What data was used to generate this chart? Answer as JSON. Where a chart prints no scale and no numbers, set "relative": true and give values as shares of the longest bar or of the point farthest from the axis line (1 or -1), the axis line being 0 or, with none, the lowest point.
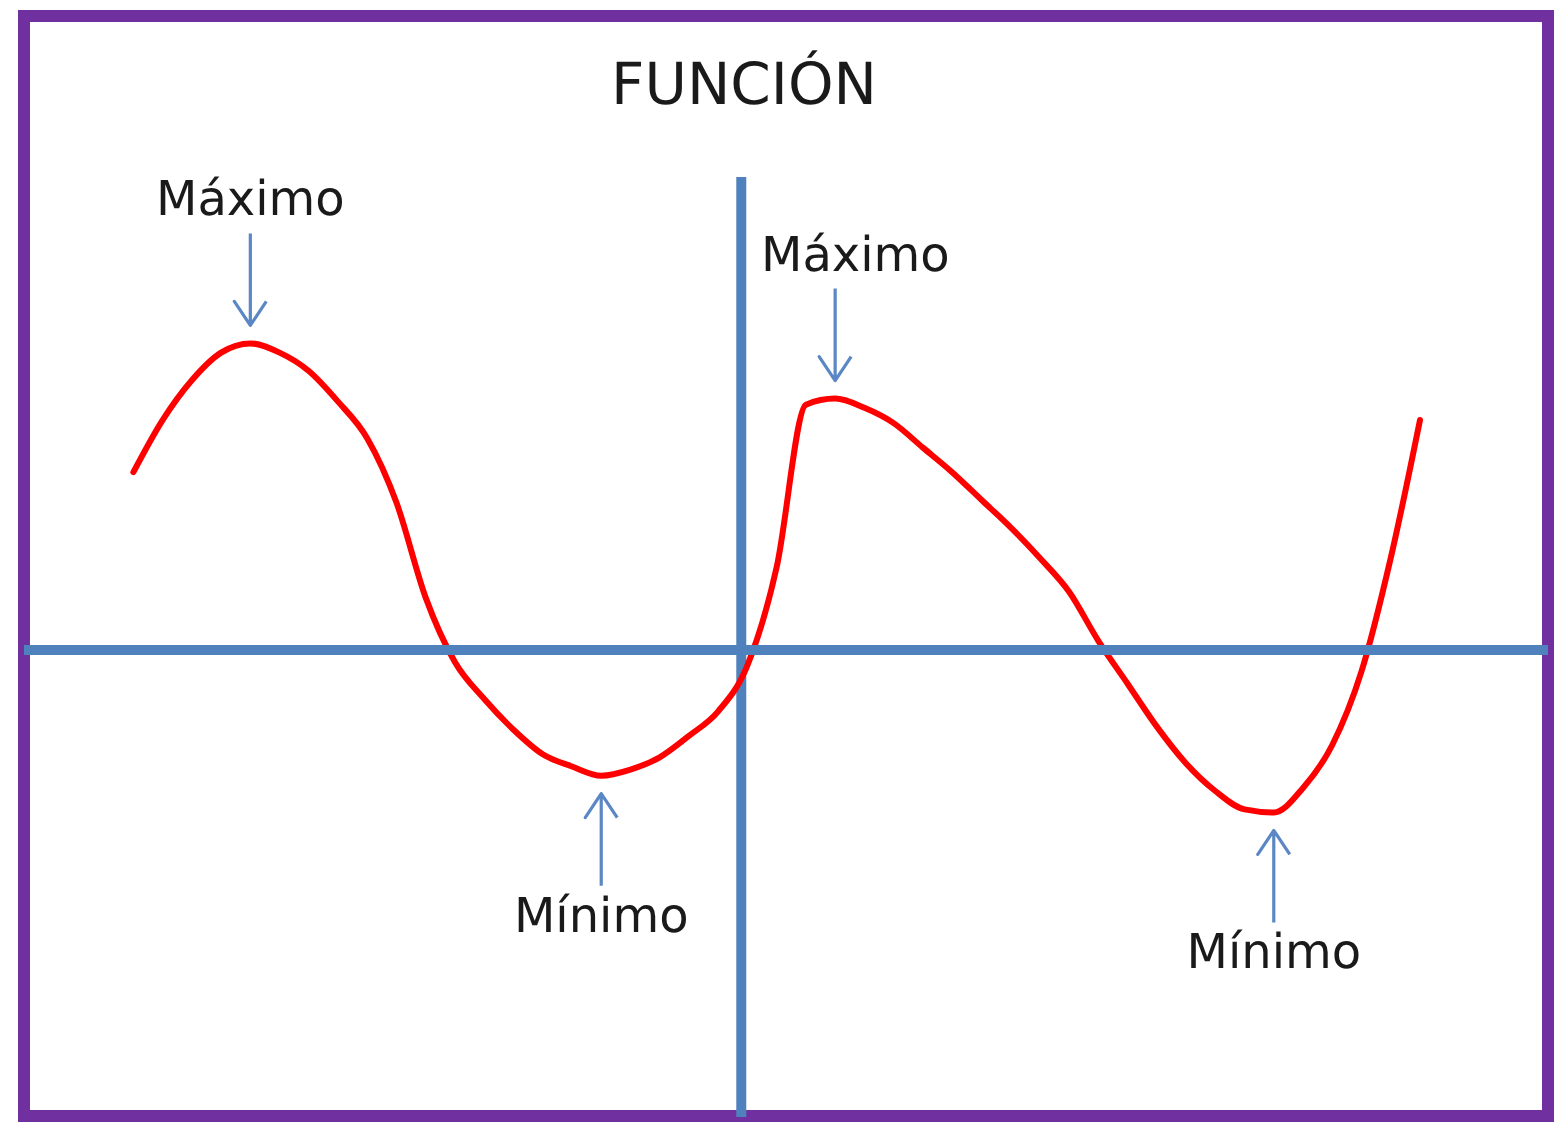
{
  "chart_data": {
    "type": "line",
    "title": "FUNCIÓN",
    "relative": true,
    "categories": [
      null,
      null,
      null,
      null,
      null,
      null,
      null,
      null,
      null,
      null,
      null,
      null,
      null,
      null,
      null,
      null,
      null,
      null,
      null,
      null,
      null,
      null,
      null,
      null,
      null,
      null,
      null,
      null,
      null,
      null,
      null,
      null,
      null,
      null,
      null,
      null,
      null,
      null,
      null,
      null,
      null,
      null,
      null,
      null,
      null
    ],
    "series": [
      {
        "color": "#ff0000",
        "values": [
          0.58,
          0.75,
          0.88,
          0.97,
          1,
          0.97,
          0.91,
          0.81,
          0.69,
          0.48,
          0.17,
          -0.04,
          -0.16,
          -0.26,
          -0.34,
          -0.38,
          -0.41,
          -0.39,
          -0.35,
          -0.28,
          -0.2,
          -0.05,
          0.27,
          0.8,
          0.82,
          0.79,
          0.74,
          0.66,
          0.58,
          0.49,
          0.4,
          0.3,
          0.19,
          0.03,
          -0.11,
          -0.25,
          -0.37,
          -0.46,
          -0.52,
          -0.53,
          -0.45,
          -0.31,
          -0.07,
          0.3,
          0.75
        ]
      }
    ],
    "ref_lines": [
      {
        "axis": "y",
        "value": 0,
        "color": "#4f81bd"
      }
    ],
    "annotations": [
      {
        "text": "Máximo",
        "y": 1
      },
      {
        "text": "Mínimo",
        "y": -0.41
      },
      {
        "text": "Máximo",
        "y": 0.82
      },
      {
        "text": "Mínimo",
        "y": -0.53
      }
    ]
  }
}
